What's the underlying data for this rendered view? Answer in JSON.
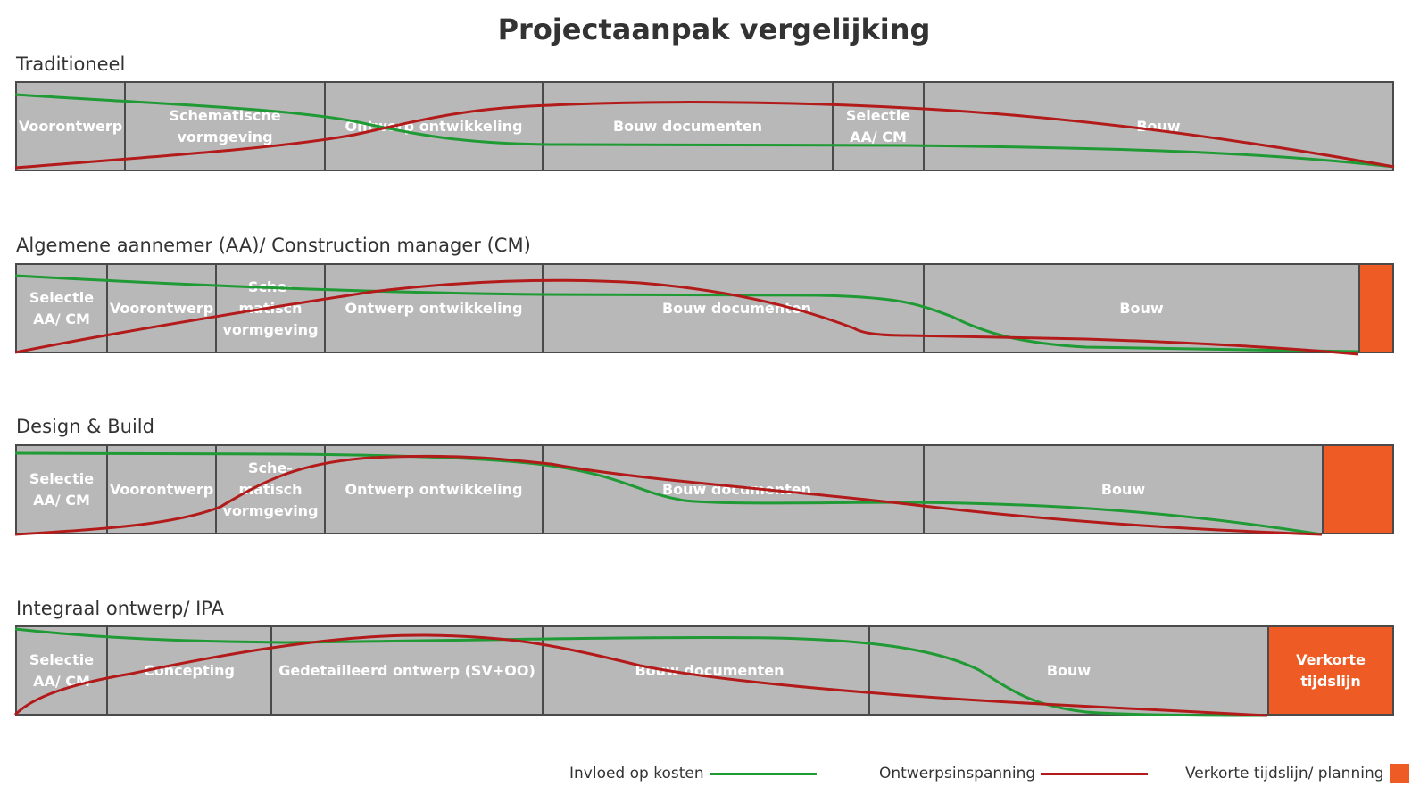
{
  "title": "Projectaanpak vergelijking",
  "colors": {
    "cost": "#1f9a34",
    "design": "#b31b1b",
    "phase": "#b8b8b8",
    "border": "#4a4a4a",
    "short": "#ef5b25"
  },
  "rows": [
    {
      "label": "Traditioneel",
      "phases": [
        {
          "label": "Voorontwerp"
        },
        {
          "label": "Schematische vormgeving"
        },
        {
          "label": "Ontwerp ontwikkeling"
        },
        {
          "label": "Bouw documenten"
        },
        {
          "label": "Selectie AA/ CM"
        },
        {
          "label": "Bouw"
        }
      ]
    },
    {
      "label": "Algemene aannemer (AA)/ Construction manager (CM)",
      "phases": [
        {
          "label": "Selectie AA/ CM"
        },
        {
          "label": "Voorontwerp"
        },
        {
          "label": "Sche-matisch vormgeving"
        },
        {
          "label": "Ontwerp ontwikkeling"
        },
        {
          "label": "Bouw documenten"
        },
        {
          "label": "Bouw"
        },
        {
          "label": ""
        }
      ]
    },
    {
      "label": "Design & Build",
      "phases": [
        {
          "label": "Selectie AA/ CM"
        },
        {
          "label": "Voorontwerp"
        },
        {
          "label": "Sche-matisch vormgeving"
        },
        {
          "label": "Ontwerp ontwikkeling"
        },
        {
          "label": "Bouw documenten"
        },
        {
          "label": "Bouw"
        },
        {
          "label": ""
        }
      ]
    },
    {
      "label": "Integraal ontwerp/ IPA",
      "phases": [
        {
          "label": "Selectie AA/ CM"
        },
        {
          "label": "Concepting"
        },
        {
          "label": "Gedetailleerd ontwerp (SV+OO)"
        },
        {
          "label": "Bouw documenten"
        },
        {
          "label": "Bouw"
        },
        {
          "label": "Verkorte tijdslijn"
        }
      ]
    }
  ],
  "legend": {
    "cost": "Invloed op kosten",
    "design": "Ontwerpsinspanning",
    "short": "Verkorte tijdslijn/ planning"
  }
}
